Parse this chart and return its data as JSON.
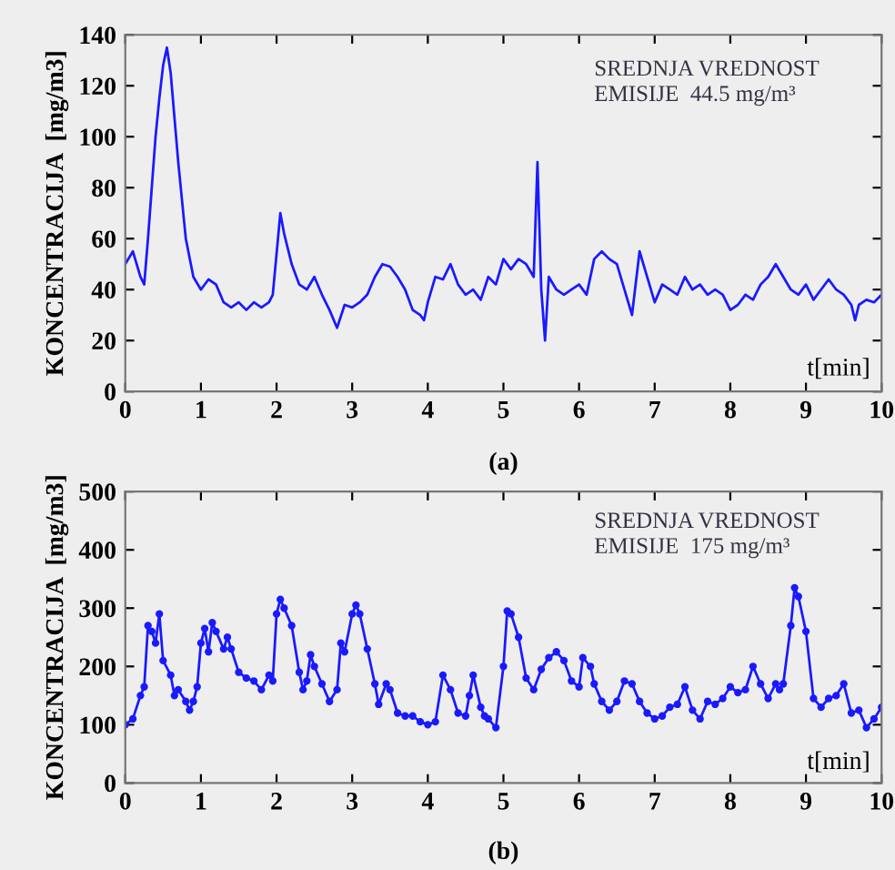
{
  "chart_data": [
    {
      "type": "line",
      "xlabel": "t[min]",
      "ylabel": "KONCENTRACIJA  [mg/m3]",
      "annotations": [
        "SREDNJA VREDNOST\nEMISIJE  44.5 mg/m³",
        "(a)"
      ],
      "xlim": [
        0,
        10
      ],
      "ylim": [
        0,
        140
      ],
      "xticks": [
        0,
        1,
        2,
        3,
        4,
        5,
        6,
        7,
        8,
        9,
        10
      ],
      "yticks": [
        0,
        20,
        40,
        60,
        80,
        100,
        120,
        140
      ],
      "grid": false,
      "legend": false,
      "marker": "none",
      "line_style": "solid",
      "series": [
        {
          "color": "#1a1aff",
          "x": [
            0,
            0.1,
            0.2,
            0.25,
            0.3,
            0.4,
            0.45,
            0.5,
            0.55,
            0.6,
            0.7,
            0.8,
            0.9,
            1.0,
            1.1,
            1.2,
            1.3,
            1.4,
            1.5,
            1.6,
            1.7,
            1.8,
            1.9,
            1.95,
            2.05,
            2.1,
            2.2,
            2.3,
            2.4,
            2.5,
            2.6,
            2.7,
            2.8,
            2.9,
            3.0,
            3.1,
            3.2,
            3.3,
            3.4,
            3.5,
            3.6,
            3.7,
            3.8,
            3.9,
            3.95,
            4.0,
            4.1,
            4.2,
            4.3,
            4.4,
            4.5,
            4.6,
            4.7,
            4.8,
            4.9,
            5.0,
            5.1,
            5.2,
            5.3,
            5.4,
            5.45,
            5.5,
            5.55,
            5.6,
            5.7,
            5.8,
            5.9,
            6.0,
            6.1,
            6.2,
            6.3,
            6.4,
            6.5,
            6.6,
            6.7,
            6.8,
            6.9,
            7.0,
            7.1,
            7.2,
            7.3,
            7.4,
            7.5,
            7.6,
            7.7,
            7.8,
            7.9,
            8.0,
            8.1,
            8.2,
            8.3,
            8.4,
            8.5,
            8.6,
            8.7,
            8.8,
            8.9,
            9.0,
            9.1,
            9.2,
            9.3,
            9.4,
            9.5,
            9.6,
            9.65,
            9.7,
            9.8,
            9.9,
            10
          ],
          "values": [
            50,
            55,
            45,
            42,
            60,
            100,
            115,
            128,
            135,
            125,
            90,
            60,
            45,
            40,
            44,
            42,
            35,
            33,
            35,
            32,
            35,
            33,
            35,
            38,
            70,
            62,
            50,
            42,
            40,
            45,
            38,
            32,
            25,
            34,
            33,
            35,
            38,
            45,
            50,
            49,
            45,
            40,
            32,
            30,
            28,
            35,
            45,
            44,
            50,
            42,
            38,
            40,
            36,
            45,
            42,
            52,
            48,
            52,
            50,
            45,
            90,
            40,
            20,
            45,
            40,
            38,
            40,
            42,
            38,
            52,
            55,
            52,
            50,
            40,
            30,
            55,
            45,
            35,
            42,
            40,
            38,
            45,
            40,
            42,
            38,
            40,
            38,
            32,
            34,
            38,
            36,
            42,
            45,
            50,
            45,
            40,
            38,
            42,
            36,
            40,
            44,
            40,
            38,
            34,
            28,
            34,
            36,
            35,
            38
          ]
        }
      ]
    },
    {
      "type": "line",
      "xlabel": "t[min]",
      "ylabel": "KONCENTRACIJA  [mg/m3]",
      "annotations": [
        "SREDNJA VREDNOST\nEMISIJE  175 mg/m³",
        "(b)"
      ],
      "xlim": [
        0,
        10
      ],
      "ylim": [
        0,
        500
      ],
      "xticks": [
        0,
        1,
        2,
        3,
        4,
        5,
        6,
        7,
        8,
        9,
        10
      ],
      "yticks": [
        0,
        100,
        200,
        300,
        400,
        500
      ],
      "grid": false,
      "legend": false,
      "marker": "circle",
      "line_style": "solid",
      "series": [
        {
          "color": "#1a1aff",
          "x": [
            0,
            0.1,
            0.2,
            0.25,
            0.3,
            0.35,
            0.4,
            0.45,
            0.5,
            0.6,
            0.65,
            0.7,
            0.8,
            0.85,
            0.9,
            0.95,
            1.0,
            1.05,
            1.1,
            1.15,
            1.2,
            1.3,
            1.35,
            1.4,
            1.5,
            1.6,
            1.7,
            1.8,
            1.9,
            1.95,
            2.0,
            2.05,
            2.1,
            2.2,
            2.3,
            2.35,
            2.4,
            2.45,
            2.5,
            2.6,
            2.7,
            2.8,
            2.85,
            2.9,
            3.0,
            3.05,
            3.1,
            3.2,
            3.3,
            3.35,
            3.45,
            3.5,
            3.6,
            3.7,
            3.8,
            3.9,
            4.0,
            4.1,
            4.2,
            4.3,
            4.4,
            4.5,
            4.55,
            4.6,
            4.7,
            4.75,
            4.8,
            4.9,
            5.0,
            5.05,
            5.1,
            5.2,
            5.3,
            5.4,
            5.5,
            5.6,
            5.7,
            5.8,
            5.9,
            6.0,
            6.05,
            6.15,
            6.2,
            6.3,
            6.4,
            6.5,
            6.6,
            6.7,
            6.8,
            6.9,
            7.0,
            7.1,
            7.2,
            7.3,
            7.4,
            7.5,
            7.6,
            7.7,
            7.8,
            7.9,
            8.0,
            8.1,
            8.2,
            8.3,
            8.4,
            8.5,
            8.6,
            8.65,
            8.7,
            8.8,
            8.85,
            8.9,
            9.0,
            9.1,
            9.2,
            9.3,
            9.4,
            9.5,
            9.6,
            9.7,
            9.8,
            9.9,
            10
          ],
          "values": [
            100,
            110,
            150,
            165,
            270,
            260,
            240,
            290,
            210,
            185,
            150,
            160,
            140,
            125,
            140,
            165,
            240,
            265,
            225,
            275,
            260,
            230,
            250,
            230,
            190,
            180,
            175,
            160,
            185,
            175,
            290,
            315,
            300,
            270,
            190,
            160,
            175,
            220,
            200,
            170,
            140,
            160,
            240,
            225,
            290,
            305,
            290,
            230,
            170,
            135,
            170,
            160,
            120,
            115,
            115,
            105,
            100,
            105,
            185,
            160,
            120,
            115,
            150,
            185,
            130,
            115,
            110,
            95,
            200,
            295,
            290,
            250,
            180,
            160,
            195,
            215,
            225,
            210,
            175,
            165,
            215,
            200,
            170,
            140,
            125,
            140,
            175,
            170,
            140,
            120,
            110,
            115,
            130,
            135,
            165,
            125,
            110,
            140,
            135,
            145,
            165,
            155,
            160,
            200,
            170,
            145,
            170,
            160,
            170,
            270,
            335,
            320,
            260,
            145,
            130,
            145,
            150,
            170,
            120,
            125,
            95,
            110,
            130
          ]
        }
      ]
    }
  ]
}
